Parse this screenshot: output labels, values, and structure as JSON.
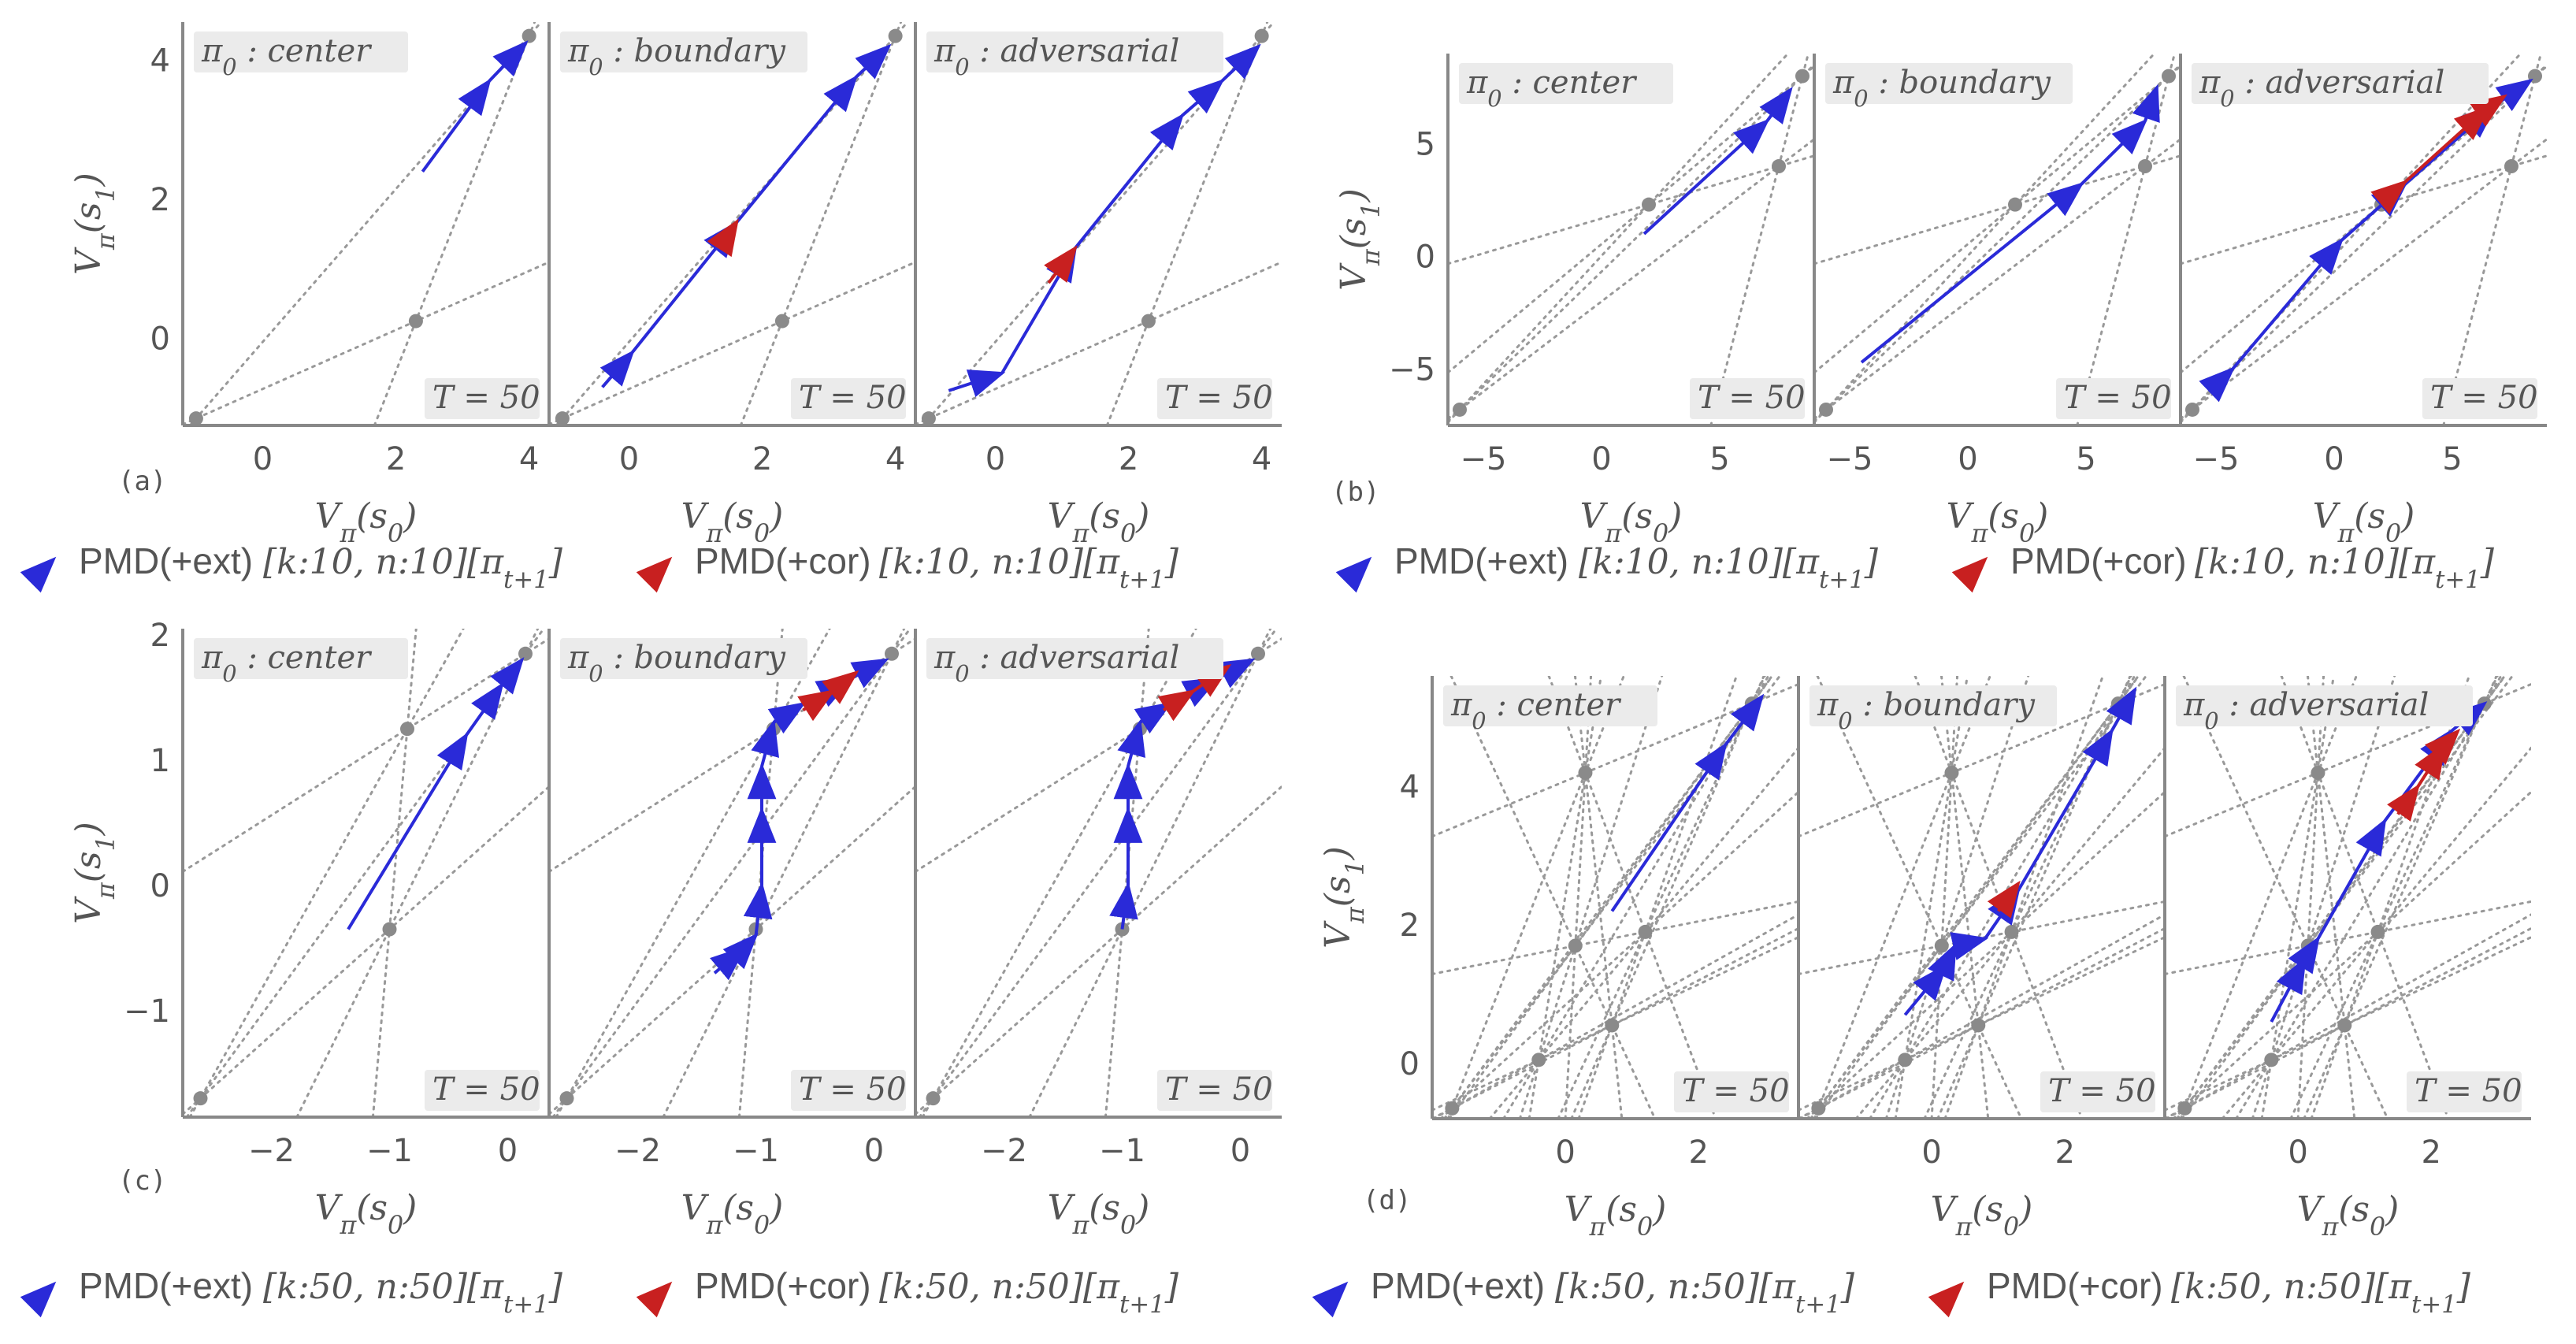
{
  "chart_data": [
    {
      "id": "a",
      "panel_label": "(a)",
      "type": "line",
      "ylabel": "V_π(s_1)",
      "xlabel": "V_π(s_0)",
      "xlim": [
        -1.2,
        4.3
      ],
      "ylim": [
        -1.25,
        4.55
      ],
      "xticks": [
        "0",
        "2",
        "4"
      ],
      "xtick_values": [
        0,
        2,
        4
      ],
      "yticks": [
        "0",
        "2",
        "4"
      ],
      "ytick_values": [
        0,
        2,
        4
      ],
      "vertices": [
        [
          -1.0,
          -1.15
        ],
        [
          2.3,
          0.25
        ],
        [
          4.0,
          4.35
        ]
      ],
      "legend": [
        {
          "label": "PMD(+ext)",
          "math": "[k:10, n:10][π",
          "sub": "t+1",
          "close": "]",
          "color": "#2a2ad8"
        },
        {
          "label": "PMD(+cor)",
          "math": "[k:10, n:10][π",
          "sub": "t+1",
          "close": "]",
          "color": "#c82020"
        }
      ],
      "subplots": [
        {
          "title": "π_0 : center",
          "T_label": "T = 50",
          "ext_path": [
            [
              2.4,
              2.4
            ],
            [
              3.4,
              3.7
            ],
            [
              3.95,
              4.25
            ]
          ],
          "cor_path": []
        },
        {
          "title": "π_0 : boundary",
          "T_label": "T = 50",
          "ext_path": [
            [
              -0.4,
              -0.7
            ],
            [
              0.05,
              -0.2
            ],
            [
              1.6,
              1.65
            ],
            [
              3.4,
              3.75
            ],
            [
              3.9,
              4.2
            ]
          ],
          "cor_path": [
            [
              1.5,
              1.5
            ],
            [
              1.62,
              1.68
            ]
          ]
        },
        {
          "title": "π_0 : adversarial",
          "T_label": "T = 50",
          "ext_path": [
            [
              -0.7,
              -0.75
            ],
            [
              0.1,
              -0.5
            ],
            [
              1.2,
              1.3
            ],
            [
              2.8,
              3.2
            ],
            [
              3.4,
              3.7
            ],
            [
              3.95,
              4.2
            ]
          ],
          "cor_path": [
            [
              0.8,
              0.8
            ],
            [
              1.2,
              1.3
            ]
          ]
        }
      ]
    },
    {
      "id": "b",
      "panel_label": "(b)",
      "type": "line",
      "ylabel": "V_π(s_1)",
      "xlabel": "V_π(s_0)",
      "xlim": [
        -6.5,
        9.0
      ],
      "ylim": [
        -7.5,
        9.0
      ],
      "xticks": [
        "−5",
        "0",
        "5"
      ],
      "xtick_values": [
        -5,
        0,
        5
      ],
      "yticks": [
        "−5",
        "0",
        "5"
      ],
      "ytick_values": [
        -5,
        0,
        5
      ],
      "vertices": [
        [
          -6.0,
          -6.8
        ],
        [
          2.0,
          2.3
        ],
        [
          7.5,
          4.0
        ],
        [
          8.5,
          8.0
        ]
      ],
      "legend": [
        {
          "label": "PMD(+ext)",
          "math": "[k:10, n:10][π",
          "sub": "t+1",
          "close": "]",
          "color": "#2a2ad8"
        },
        {
          "label": "PMD(+cor)",
          "math": "[k:10, n:10][π",
          "sub": "t+1",
          "close": "]",
          "color": "#c82020"
        }
      ],
      "subplots": [
        {
          "title": "π_0 : center",
          "T_label": "T = 50",
          "ext_path": [
            [
              1.8,
              1.0
            ],
            [
              7.0,
              6.0
            ],
            [
              8.0,
              7.4
            ]
          ],
          "cor_path": []
        },
        {
          "title": "π_0 : boundary",
          "T_label": "T = 50",
          "ext_path": [
            [
              -4.5,
              -4.7
            ],
            [
              4.8,
              3.2
            ],
            [
              7.5,
              6.0
            ],
            [
              8.0,
              7.5
            ]
          ],
          "cor_path": []
        },
        {
          "title": "π_0 : adversarial",
          "T_label": "T = 50",
          "ext_path": [
            [
              -5.3,
              -6.0
            ],
            [
              -4.3,
              -5.0
            ],
            [
              0.3,
              0.7
            ],
            [
              3.0,
              3.2
            ],
            [
              6.8,
              6.7
            ],
            [
              8.3,
              7.8
            ]
          ],
          "cor_path": [
            [
              2.2,
              2.6
            ],
            [
              3.0,
              3.3
            ],
            [
              6.5,
              6.6
            ],
            [
              7.2,
              7.1
            ]
          ]
        }
      ]
    },
    {
      "id": "c",
      "panel_label": "(c)",
      "type": "line",
      "ylabel": "V_π(s_1)",
      "xlabel": "V_π(s_0)",
      "xlim": [
        -2.75,
        0.35
      ],
      "ylim": [
        -1.85,
        2.05
      ],
      "xticks": [
        "−2",
        "−1",
        "0"
      ],
      "xtick_values": [
        -2,
        -1,
        0
      ],
      "yticks": [
        "−1",
        "0",
        "1",
        "2"
      ],
      "ytick_values": [
        -1,
        0,
        1,
        2
      ],
      "vertices": [
        [
          -2.6,
          -1.7
        ],
        [
          -0.85,
          1.25
        ],
        [
          -1.0,
          -0.35
        ],
        [
          0.15,
          1.85
        ]
      ],
      "legend": [
        {
          "label": "PMD(+ext)",
          "math": "[k:50, n:50][π",
          "sub": "t+1",
          "close": "]",
          "color": "#2a2ad8"
        },
        {
          "label": "PMD(+cor)",
          "math": "[k:50, n:50][π",
          "sub": "t+1",
          "close": "]",
          "color": "#c82020"
        }
      ],
      "subplots": [
        {
          "title": "π_0 : center",
          "T_label": "T = 50",
          "ext_path": [
            [
              -1.35,
              -0.35
            ],
            [
              -0.35,
              1.2
            ],
            [
              -0.05,
              1.6
            ],
            [
              0.12,
              1.8
            ]
          ],
          "cor_path": []
        },
        {
          "title": "π_0 : boundary",
          "T_label": "T = 50",
          "ext_path": [
            [
              -1.35,
              -0.7
            ],
            [
              -1.1,
              -0.5
            ],
            [
              -1.0,
              -0.4
            ],
            [
              -0.95,
              0.0
            ],
            [
              -0.95,
              0.6
            ],
            [
              -0.95,
              0.95
            ],
            [
              -0.85,
              1.3
            ],
            [
              -0.6,
              1.45
            ],
            [
              -0.2,
              1.65
            ],
            [
              0.1,
              1.8
            ]
          ],
          "cor_path": [
            [
              -0.6,
              1.4
            ],
            [
              -0.35,
              1.55
            ],
            [
              -0.15,
              1.7
            ]
          ]
        },
        {
          "title": "π_0 : adversarial",
          "T_label": "T = 50",
          "ext_path": [
            [
              -1.0,
              -0.35
            ],
            [
              -0.95,
              0.0
            ],
            [
              -0.95,
              0.6
            ],
            [
              -0.95,
              0.95
            ],
            [
              -0.85,
              1.3
            ],
            [
              -0.6,
              1.45
            ],
            [
              -0.2,
              1.65
            ],
            [
              0.1,
              1.8
            ]
          ],
          "cor_path": [
            [
              -0.65,
              1.4
            ],
            [
              -0.4,
              1.55
            ],
            [
              -0.1,
              1.75
            ]
          ]
        }
      ]
    },
    {
      "id": "d",
      "panel_label": "(d)",
      "type": "line",
      "ylabel": "V_π(s_1)",
      "xlabel": "V_π(s_0)",
      "xlim": [
        -2.0,
        3.5
      ],
      "ylim": [
        -0.8,
        5.6
      ],
      "xticks": [
        "0",
        "2"
      ],
      "xtick_values": [
        0,
        2
      ],
      "yticks": [
        "0",
        "2",
        "4"
      ],
      "ytick_values": [
        0,
        2,
        4
      ],
      "vertices": [
        [
          -1.7,
          -0.65
        ],
        [
          -0.4,
          0.05
        ],
        [
          0.15,
          1.7
        ],
        [
          0.3,
          4.2
        ],
        [
          0.7,
          0.55
        ],
        [
          1.2,
          1.9
        ],
        [
          2.8,
          5.2
        ]
      ],
      "legend": [
        {
          "label": "PMD(+ext)",
          "math": "[k:50, n:50][π",
          "sub": "t+1",
          "close": "]",
          "color": "#2a2ad8"
        },
        {
          "label": "PMD(+cor)",
          "math": "[k:50, n:50][π",
          "sub": "t+1",
          "close": "]",
          "color": "#c82020"
        }
      ],
      "subplots": [
        {
          "title": "π_0 : center",
          "T_label": "T = 50",
          "ext_path": [
            [
              0.7,
              2.2
            ],
            [
              2.4,
              4.6
            ],
            [
              2.95,
              5.3
            ]
          ],
          "cor_path": []
        },
        {
          "title": "π_0 : boundary",
          "T_label": "T = 50",
          "ext_path": [
            [
              -0.4,
              0.7
            ],
            [
              0.2,
              1.4
            ],
            [
              0.35,
              1.7
            ],
            [
              0.8,
              1.8
            ],
            [
              1.3,
              2.5
            ],
            [
              2.7,
              4.8
            ],
            [
              3.05,
              5.4
            ]
          ],
          "cor_path": [
            [
              1.0,
              2.2
            ],
            [
              1.3,
              2.6
            ]
          ]
        },
        {
          "title": "π_0 : adversarial",
          "T_label": "T = 50",
          "ext_path": [
            [
              -0.4,
              0.6
            ],
            [
              0.1,
              1.5
            ],
            [
              0.3,
              1.8
            ],
            [
              1.3,
              3.5
            ],
            [
              2.3,
              4.8
            ],
            [
              2.8,
              5.2
            ]
          ],
          "cor_path": [
            [
              1.5,
              3.6
            ],
            [
              1.8,
              4.0
            ],
            [
              2.2,
              4.6
            ],
            [
              2.4,
              4.8
            ]
          ]
        }
      ]
    }
  ],
  "colors": {
    "ext": "#2a2ad8",
    "cor": "#c82020",
    "axis": "#888888",
    "grid": "#999999",
    "vertex": "#8a8a8a",
    "label_bg": "#ebebeb"
  }
}
